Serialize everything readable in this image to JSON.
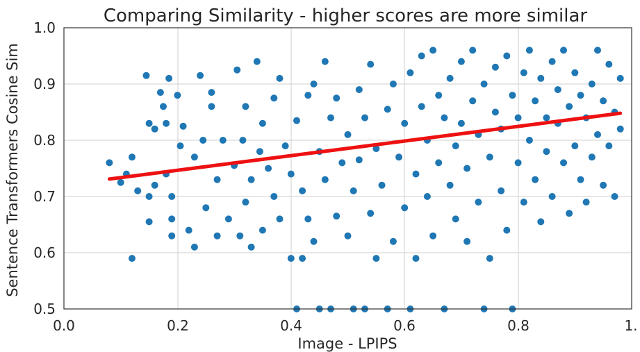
{
  "chart_data": {
    "type": "scatter",
    "title": "Comparing Similarity - higher scores are more similar",
    "xlabel": "Image - LPIPS",
    "ylabel": "Sentence Transformers Cosine Sim",
    "xlim": [
      0.0,
      1.0
    ],
    "ylim": [
      0.5,
      1.0
    ],
    "xticks": [
      "0.0",
      "0.2",
      "0.4",
      "0.6",
      "0.8",
      "1."
    ],
    "yticks": [
      "0.5",
      "0.6",
      "0.7",
      "0.8",
      "0.9",
      "1.0"
    ],
    "grid": true,
    "colors": {
      "points": "#1f77b4",
      "fit_line": "#ee1111"
    },
    "fit_line": {
      "x": [
        0.08,
        0.98
      ],
      "y": [
        0.731,
        0.848
      ]
    },
    "series": [
      {
        "values": [
          [
            0.08,
            0.76
          ],
          [
            0.1,
            0.725
          ],
          [
            0.11,
            0.74
          ],
          [
            0.12,
            0.77
          ],
          [
            0.12,
            0.59
          ],
          [
            0.13,
            0.71
          ],
          [
            0.145,
            0.915
          ],
          [
            0.15,
            0.655
          ],
          [
            0.15,
            0.7
          ],
          [
            0.15,
            0.83
          ],
          [
            0.16,
            0.82
          ],
          [
            0.16,
            0.72
          ],
          [
            0.17,
            0.885
          ],
          [
            0.175,
            0.86
          ],
          [
            0.18,
            0.83
          ],
          [
            0.18,
            0.74
          ],
          [
            0.185,
            0.91
          ],
          [
            0.19,
            0.66
          ],
          [
            0.19,
            0.7
          ],
          [
            0.19,
            0.63
          ],
          [
            0.2,
            0.88
          ],
          [
            0.205,
            0.79
          ],
          [
            0.21,
            0.825
          ],
          [
            0.22,
            0.64
          ],
          [
            0.23,
            0.77
          ],
          [
            0.23,
            0.61
          ],
          [
            0.24,
            0.915
          ],
          [
            0.245,
            0.8
          ],
          [
            0.25,
            0.68
          ],
          [
            0.26,
            0.86
          ],
          [
            0.26,
            0.885
          ],
          [
            0.27,
            0.63
          ],
          [
            0.27,
            0.73
          ],
          [
            0.28,
            0.8
          ],
          [
            0.29,
            0.66
          ],
          [
            0.3,
            0.755
          ],
          [
            0.305,
            0.925
          ],
          [
            0.31,
            0.63
          ],
          [
            0.315,
            0.8
          ],
          [
            0.32,
            0.86
          ],
          [
            0.32,
            0.69
          ],
          [
            0.33,
            0.73
          ],
          [
            0.33,
            0.61
          ],
          [
            0.34,
            0.94
          ],
          [
            0.345,
            0.78
          ],
          [
            0.35,
            0.83
          ],
          [
            0.35,
            0.64
          ],
          [
            0.36,
            0.75
          ],
          [
            0.37,
            0.7
          ],
          [
            0.37,
            0.875
          ],
          [
            0.38,
            0.91
          ],
          [
            0.38,
            0.66
          ],
          [
            0.39,
            0.79
          ],
          [
            0.4,
            0.59
          ],
          [
            0.4,
            0.74
          ],
          [
            0.41,
            0.835
          ],
          [
            0.41,
            0.5
          ],
          [
            0.42,
            0.59
          ],
          [
            0.42,
            0.71
          ],
          [
            0.43,
            0.88
          ],
          [
            0.43,
            0.66
          ],
          [
            0.44,
            0.9
          ],
          [
            0.44,
            0.62
          ],
          [
            0.45,
            0.78
          ],
          [
            0.45,
            0.5
          ],
          [
            0.46,
            0.94
          ],
          [
            0.46,
            0.73
          ],
          [
            0.47,
            0.84
          ],
          [
            0.47,
            0.5
          ],
          [
            0.48,
            0.665
          ],
          [
            0.48,
            0.875
          ],
          [
            0.49,
            0.76
          ],
          [
            0.5,
            0.63
          ],
          [
            0.5,
            0.81
          ],
          [
            0.51,
            0.71
          ],
          [
            0.51,
            0.5
          ],
          [
            0.52,
            0.89
          ],
          [
            0.52,
            0.765
          ],
          [
            0.53,
            0.84
          ],
          [
            0.53,
            0.5
          ],
          [
            0.54,
            0.67
          ],
          [
            0.54,
            0.935
          ],
          [
            0.55,
            0.785
          ],
          [
            0.55,
            0.59
          ],
          [
            0.56,
            0.72
          ],
          [
            0.57,
            0.855
          ],
          [
            0.57,
            0.5
          ],
          [
            0.58,
            0.62
          ],
          [
            0.58,
            0.9
          ],
          [
            0.59,
            0.77
          ],
          [
            0.6,
            0.68
          ],
          [
            0.6,
            0.83
          ],
          [
            0.61,
            0.92
          ],
          [
            0.61,
            0.5
          ],
          [
            0.62,
            0.74
          ],
          [
            0.62,
            0.59
          ],
          [
            0.63,
            0.86
          ],
          [
            0.63,
            0.95
          ],
          [
            0.64,
            0.7
          ],
          [
            0.64,
            0.8
          ],
          [
            0.65,
            0.96
          ],
          [
            0.65,
            0.63
          ],
          [
            0.66,
            0.88
          ],
          [
            0.66,
            0.76
          ],
          [
            0.67,
            0.5
          ],
          [
            0.67,
            0.84
          ],
          [
            0.68,
            0.72
          ],
          [
            0.68,
            0.91
          ],
          [
            0.69,
            0.66
          ],
          [
            0.69,
            0.79
          ],
          [
            0.7,
            0.94
          ],
          [
            0.7,
            0.83
          ],
          [
            0.71,
            0.75
          ],
          [
            0.71,
            0.62
          ],
          [
            0.72,
            0.87
          ],
          [
            0.72,
            0.96
          ],
          [
            0.73,
            0.69
          ],
          [
            0.73,
            0.81
          ],
          [
            0.74,
            0.5
          ],
          [
            0.74,
            0.9
          ],
          [
            0.75,
            0.77
          ],
          [
            0.75,
            0.59
          ],
          [
            0.76,
            0.85
          ],
          [
            0.76,
            0.93
          ],
          [
            0.77,
            0.71
          ],
          [
            0.77,
            0.82
          ],
          [
            0.78,
            0.95
          ],
          [
            0.78,
            0.64
          ],
          [
            0.79,
            0.88
          ],
          [
            0.79,
            0.5
          ],
          [
            0.8,
            0.76
          ],
          [
            0.8,
            0.84
          ],
          [
            0.81,
            0.92
          ],
          [
            0.81,
            0.69
          ],
          [
            0.82,
            0.8
          ],
          [
            0.82,
            0.96
          ],
          [
            0.83,
            0.73
          ],
          [
            0.83,
            0.87
          ],
          [
            0.84,
            0.655
          ],
          [
            0.84,
            0.91
          ],
          [
            0.85,
            0.78
          ],
          [
            0.85,
            0.84
          ],
          [
            0.86,
            0.94
          ],
          [
            0.86,
            0.7
          ],
          [
            0.87,
            0.83
          ],
          [
            0.87,
            0.89
          ],
          [
            0.88,
            0.76
          ],
          [
            0.88,
            0.96
          ],
          [
            0.89,
            0.67
          ],
          [
            0.89,
            0.86
          ],
          [
            0.9,
            0.92
          ],
          [
            0.9,
            0.79
          ],
          [
            0.91,
            0.73
          ],
          [
            0.91,
            0.88
          ],
          [
            0.92,
            0.84
          ],
          [
            0.92,
            0.69
          ],
          [
            0.93,
            0.9
          ],
          [
            0.93,
            0.77
          ],
          [
            0.94,
            0.81
          ],
          [
            0.94,
            0.96
          ],
          [
            0.95,
            0.72
          ],
          [
            0.95,
            0.87
          ],
          [
            0.96,
            0.935
          ],
          [
            0.96,
            0.79
          ],
          [
            0.97,
            0.85
          ],
          [
            0.97,
            0.7
          ],
          [
            0.98,
            0.82
          ],
          [
            0.98,
            0.91
          ]
        ]
      }
    ]
  }
}
